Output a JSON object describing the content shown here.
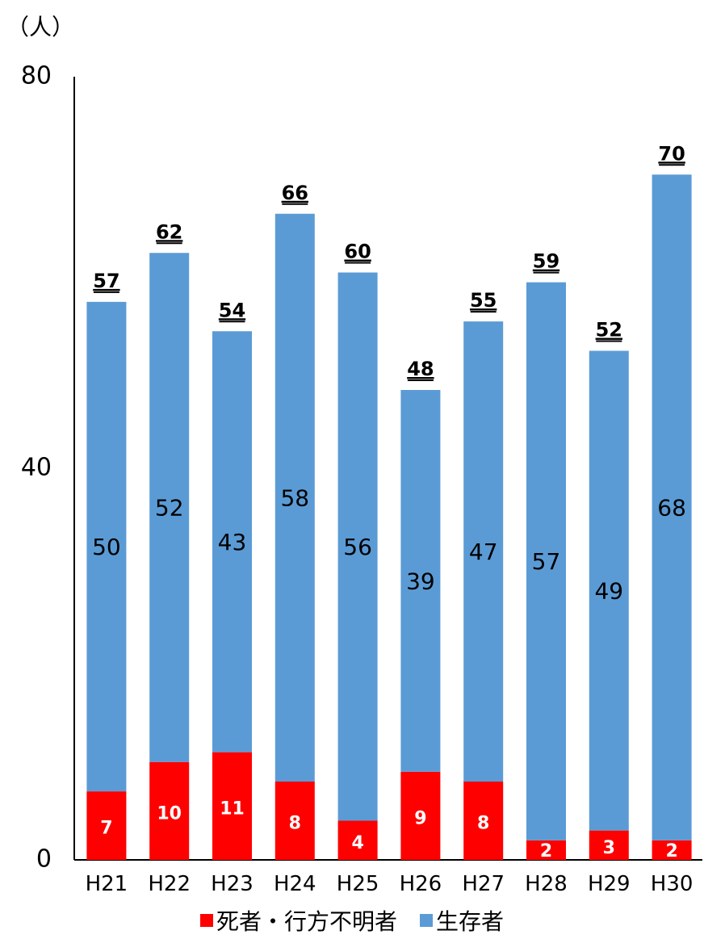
{
  "chart_data": {
    "type": "bar",
    "stacked": true,
    "unit_label": "（人）",
    "categories": [
      "H21",
      "H22",
      "H23",
      "H24",
      "H25",
      "H26",
      "H27",
      "H28",
      "H29",
      "H30"
    ],
    "series": [
      {
        "name": "死者・行方不明者",
        "color": "#ff0000",
        "values": [
          7,
          10,
          11,
          8,
          4,
          9,
          8,
          2,
          3,
          2
        ]
      },
      {
        "name": "生存者",
        "color": "#5b9bd5",
        "values": [
          50,
          52,
          43,
          58,
          56,
          39,
          47,
          57,
          49,
          68
        ]
      }
    ],
    "totals": [
      57,
      62,
      54,
      66,
      60,
      48,
      55,
      59,
      52,
      70
    ],
    "y_ticks": [
      0,
      40,
      80
    ],
    "ylim": [
      0,
      80
    ],
    "grid": false,
    "legend_position": "bottom"
  }
}
